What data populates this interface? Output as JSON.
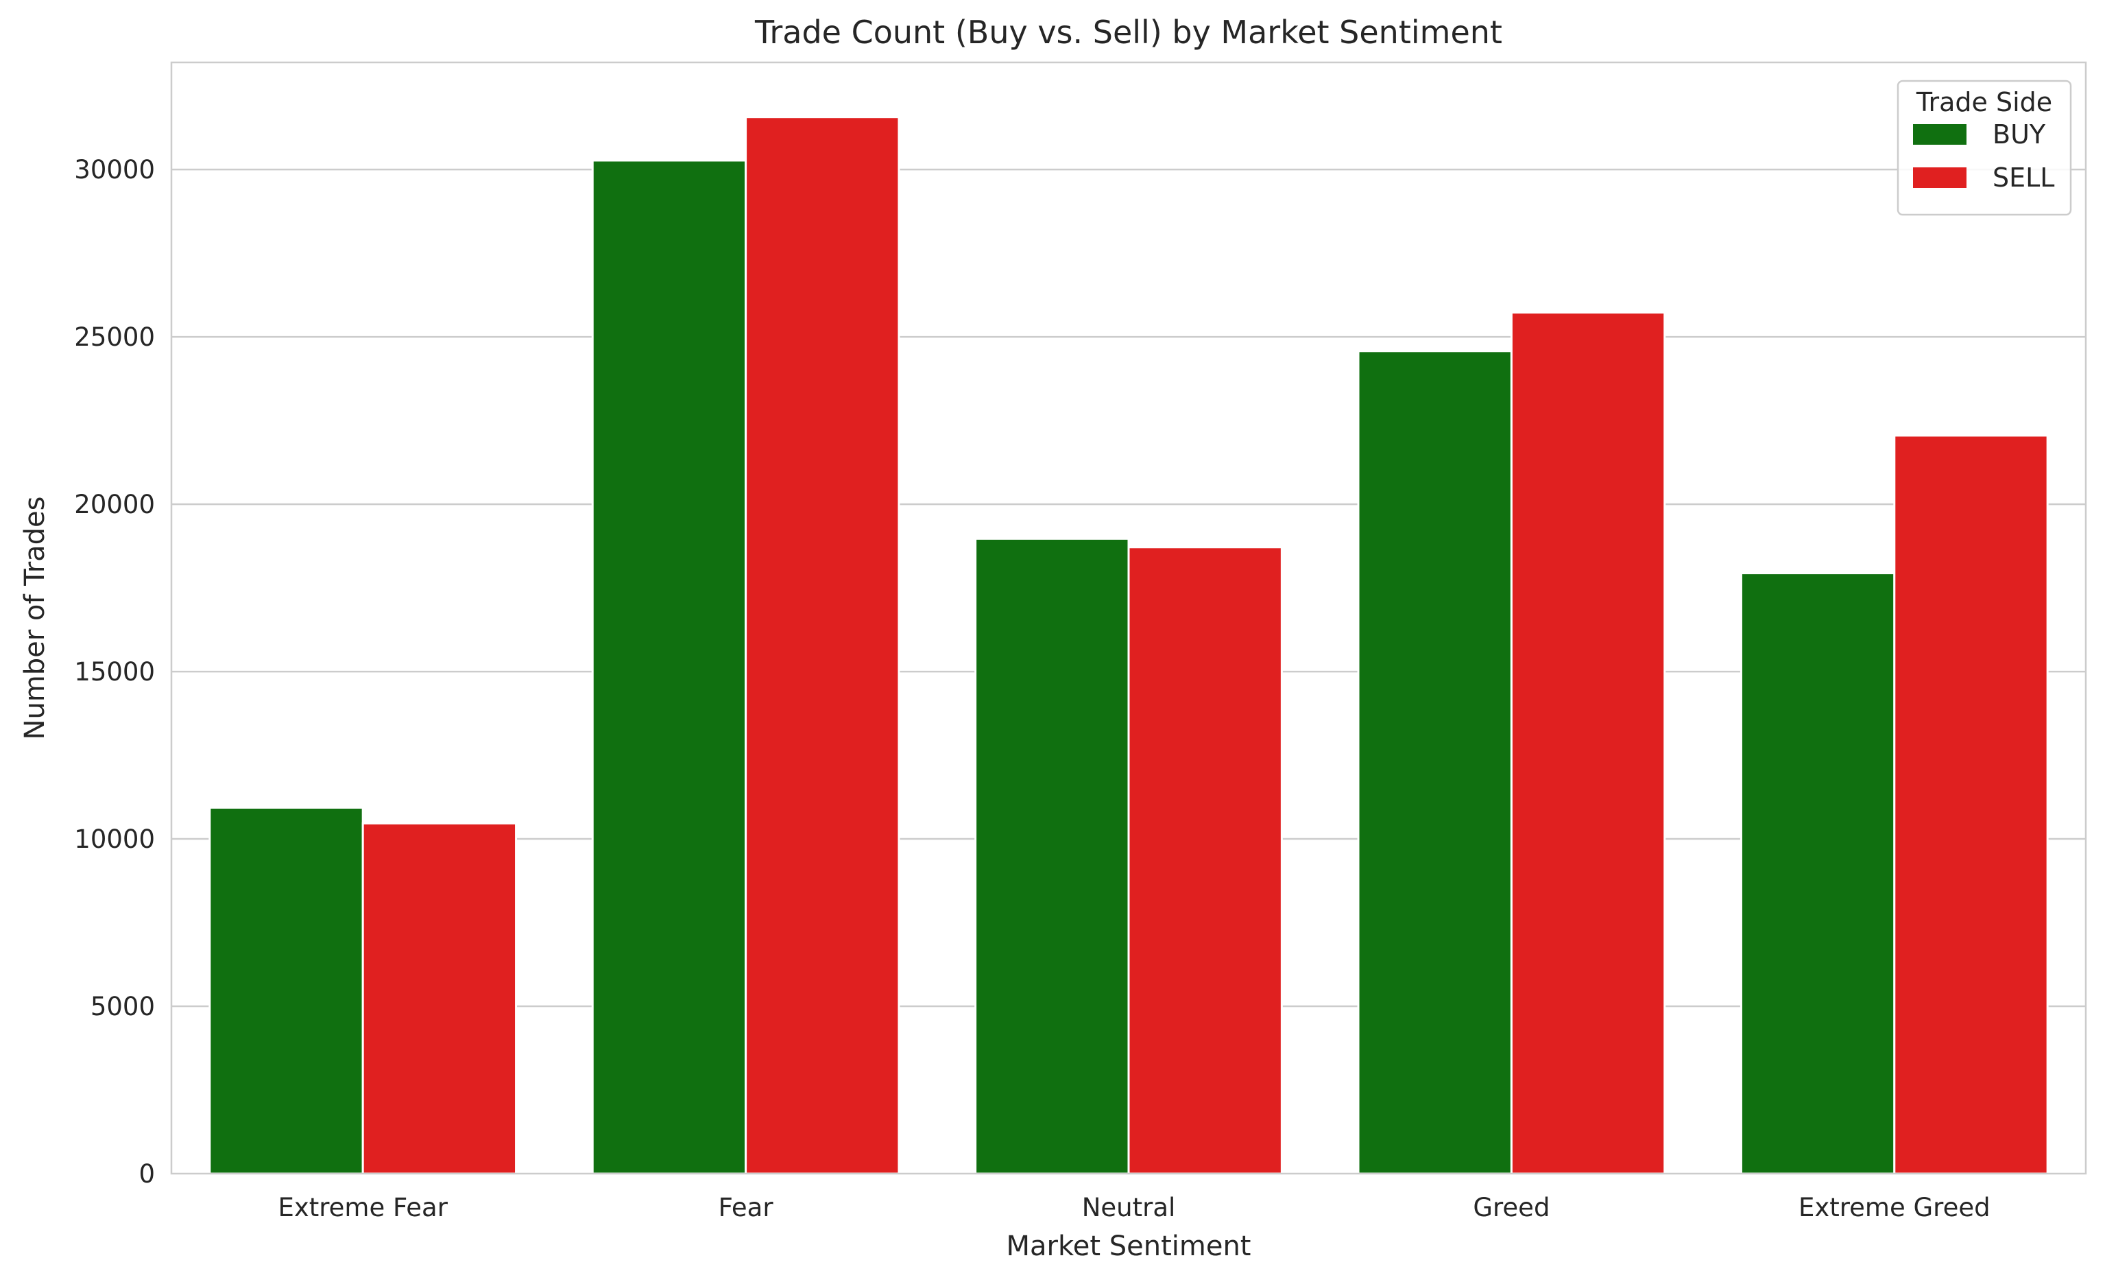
{
  "chart_data": {
    "type": "bar",
    "title": "Trade Count (Buy vs. Sell) by Market Sentiment",
    "xlabel": "Market Sentiment",
    "ylabel": "Number of Trades",
    "categories": [
      "Extreme Fear",
      "Fear",
      "Neutral",
      "Greed",
      "Extreme Greed"
    ],
    "series": [
      {
        "name": "BUY",
        "color": "#107010",
        "values": [
          10935,
          30270,
          18970,
          24576,
          17940
        ]
      },
      {
        "name": "SELL",
        "color": "#e02020",
        "values": [
          10465,
          31567,
          18716,
          25727,
          22052
        ]
      }
    ],
    "ylim": [
      0,
      33200
    ],
    "yticks": [
      0,
      5000,
      10000,
      15000,
      20000,
      25000,
      30000
    ],
    "grid": true,
    "legend": {
      "title": "Trade Side",
      "position": "top-right"
    }
  }
}
